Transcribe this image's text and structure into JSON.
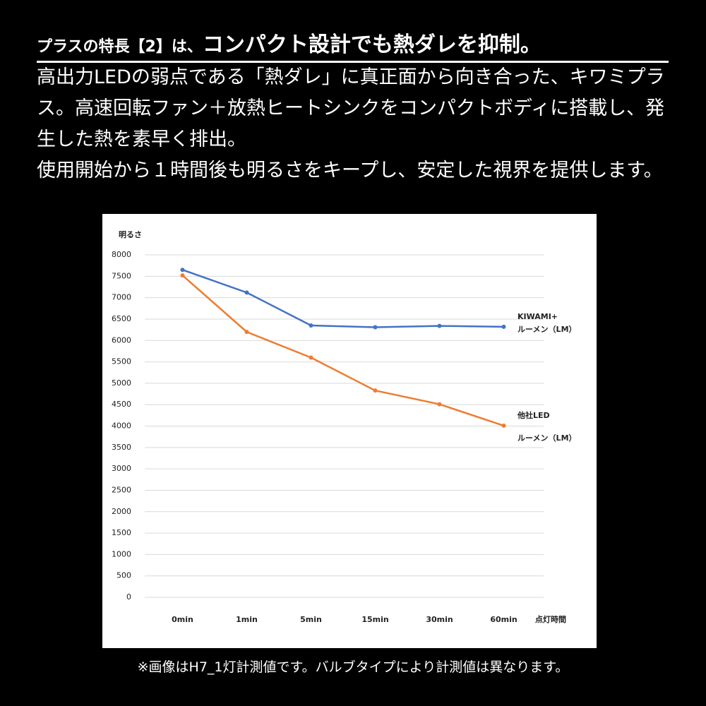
{
  "header": {
    "title_prefix": "プラスの特長【2】は、",
    "title_main": "コンパクト設計でも熱ダレを抑制。",
    "paragraphs": [
      "高出力LEDの弱点である「熱ダレ」に真正面から向き合った、キワミプラス。高速回転ファン＋放熱ヒートシンクをコンパクトボディに搭載し、発生した熱を素早く排出。",
      "使用開始から１時間後も明るさをキープし、安定した視界を提供します。"
    ]
  },
  "chart_data": {
    "type": "line",
    "y_label": "明るさ",
    "x_label": "点灯時間",
    "categories": [
      "0min",
      "1min",
      "5min",
      "15min",
      "30min",
      "60min"
    ],
    "series": [
      {
        "name": "KIWAMI+",
        "sublabel": "ルーメン（LM）",
        "color": "#4472c4",
        "values": [
          7650,
          7120,
          6350,
          6310,
          6340,
          6320
        ]
      },
      {
        "name": "他社LED",
        "sublabel": "ルーメン（LM）",
        "color": "#ed7d31",
        "values": [
          7520,
          6200,
          5600,
          4830,
          4510,
          4010
        ]
      }
    ],
    "ylim": [
      0,
      8000
    ],
    "yticks": [
      0,
      500,
      1000,
      1500,
      2000,
      2500,
      3000,
      3500,
      4000,
      4500,
      5000,
      5500,
      6000,
      6500,
      7000,
      7500,
      8000
    ],
    "grid": true
  },
  "footnote": "※画像はH7_1灯計測値です。バルブタイプにより計測値は異なります。"
}
